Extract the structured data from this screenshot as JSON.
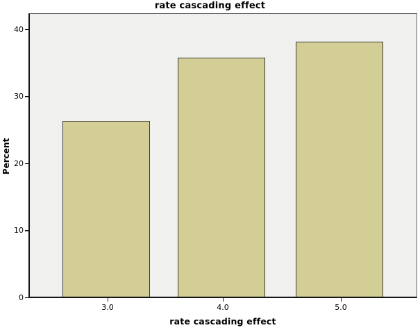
{
  "page": {
    "background": "#ffffff"
  },
  "chart_data": {
    "type": "bar",
    "title": "rate cascading effect",
    "xlabel": "rate cascading effect",
    "ylabel": "Percent",
    "categories": [
      "3.0",
      "4.0",
      "5.0"
    ],
    "values": [
      26.2,
      35.7,
      38.1
    ],
    "y_ticks": [
      0,
      10,
      20,
      30,
      40
    ],
    "ylim": [
      0,
      42.3
    ],
    "grid": false,
    "legend": false,
    "colors": {
      "bar_fill": "#d3ce95",
      "bar_border": "#3b3b33",
      "plot_background": "#f0f0ef",
      "axis_line": "#161616",
      "frame_line": "#616161",
      "text": "#000000"
    }
  }
}
